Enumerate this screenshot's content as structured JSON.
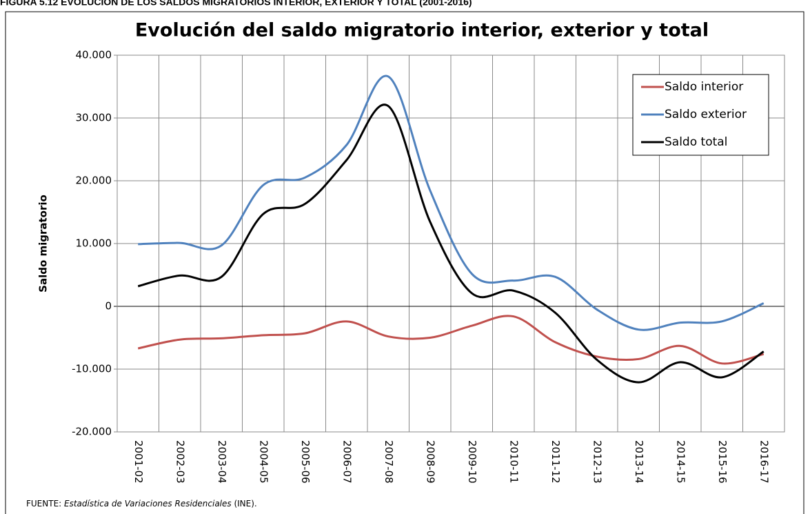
{
  "figure_label": "FIGURA 5.12 EVOLUCIÓN DE LOS SALDOS MIGRATORIOS INTERIOR, EXTERIOR Y TOTAL (2001-2016)",
  "source": {
    "prefix": "FUENTE: ",
    "title": "Estadística de Variaciones Residenciales",
    "suffix": " (INE)."
  },
  "chart_data": {
    "type": "line",
    "title": "Evolución del saldo migratorio interior, exterior y total",
    "y_label": "Saldo migratorio",
    "categories": [
      "2001-02",
      "2002-03",
      "2003-04",
      "2004-05",
      "2005-06",
      "2006-07",
      "2007-08",
      "2008-09",
      "2009-10",
      "2010-11",
      "2011-12",
      "2012-13",
      "2013-14",
      "2014-15",
      "2015-16",
      "2016-17"
    ],
    "series": [
      {
        "name": "Saldo interior",
        "color": "#c0504d",
        "values": [
          -6700,
          -5300,
          -5100,
          -4600,
          -4300,
          -2400,
          -4800,
          -5000,
          -3100,
          -1600,
          -5700,
          -8000,
          -8400,
          -6300,
          -9100,
          -7600
        ]
      },
      {
        "name": "Saldo exterior",
        "color": "#4f81bd",
        "values": [
          9900,
          10100,
          9700,
          19300,
          20500,
          25700,
          36600,
          18500,
          5200,
          4100,
          4700,
          -500,
          -3700,
          -2600,
          -2400,
          500
        ]
      },
      {
        "name": "Saldo total",
        "color": "#000000",
        "values": [
          3200,
          4900,
          4700,
          14700,
          16300,
          23300,
          31900,
          13500,
          2100,
          2500,
          -1000,
          -8500,
          -12100,
          -8900,
          -11300,
          -7200
        ]
      }
    ],
    "ylim": [
      -20000,
      40000
    ],
    "yticks": [
      {
        "value": -20000,
        "label": "-20.000"
      },
      {
        "value": -10000,
        "label": "-10.000"
      },
      0,
      {
        "value": 10000,
        "label": "10.000"
      },
      {
        "value": 20000,
        "label": "20.000"
      },
      {
        "value": 30000,
        "label": "30.000"
      },
      {
        "value": 40000,
        "label": "40.000"
      }
    ],
    "grid": true,
    "legend": "upper right"
  }
}
